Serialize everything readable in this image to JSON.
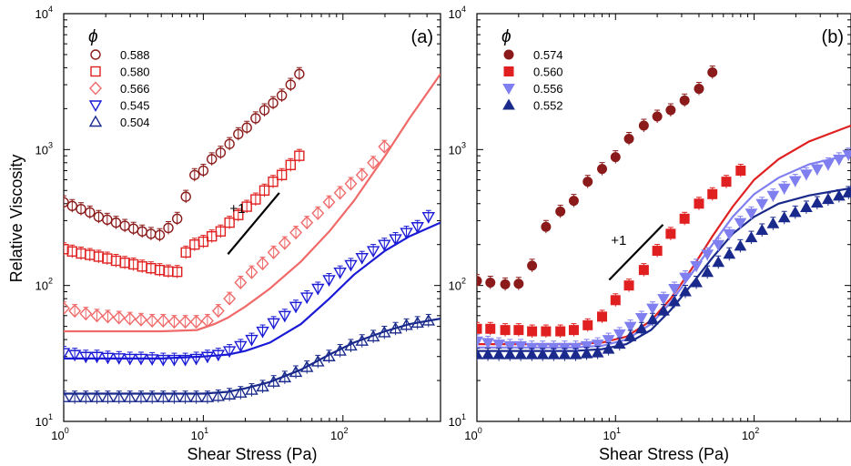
{
  "y_axis_label": "Relative Viscosity",
  "colors": {
    "darkred": "#8b1a1a",
    "red": "#e02020",
    "salmon": "#f06a6a",
    "blue": "#1a1ad6",
    "navy": "#1a2a8c",
    "lavender": "#7f7ff0"
  },
  "chart_data": [
    {
      "type": "scatter",
      "panel_label": "(a)",
      "xlabel": "Shear Stress (Pa)",
      "xscale": "log",
      "yscale": "log",
      "xlim": [
        1,
        500
      ],
      "ylim": [
        10,
        10000
      ],
      "x_ticks": [
        "10",
        "10",
        "10"
      ],
      "x_tick_exp": [
        "0",
        "1",
        "2"
      ],
      "y_ticks": [
        "10",
        "10",
        "10",
        "10"
      ],
      "y_tick_exp": [
        "1",
        "2",
        "3",
        "4"
      ],
      "legend_symbol": "ϕ",
      "legend_position": "top-left",
      "slope_label": "+1",
      "slope_line": {
        "x": [
          15,
          35
        ],
        "y": [
          170,
          480
        ]
      },
      "series": [
        {
          "name": "0.588",
          "marker": "circle",
          "color": "#8b1a1a",
          "x": [
            1.0,
            1.15,
            1.33,
            1.54,
            1.78,
            2.05,
            2.37,
            2.74,
            3.16,
            3.65,
            4.22,
            4.87,
            5.62,
            6.5,
            7.5,
            8.66,
            10,
            11.5,
            13.3,
            15.4,
            17.8,
            20.5,
            23.7,
            27.4,
            31.6,
            36.5,
            42.2,
            48.7
          ],
          "y": [
            410,
            385,
            365,
            345,
            320,
            305,
            290,
            275,
            262,
            250,
            240,
            235,
            265,
            310,
            450,
            650,
            700,
            850,
            950,
            1100,
            1300,
            1450,
            1700,
            1950,
            2200,
            2500,
            3000,
            3600
          ]
        },
        {
          "name": "0.580",
          "marker": "square",
          "color": "#e02020",
          "x": [
            1.0,
            1.15,
            1.33,
            1.54,
            1.78,
            2.05,
            2.37,
            2.74,
            3.16,
            3.65,
            4.22,
            4.87,
            5.62,
            6.5,
            7.5,
            8.66,
            10,
            11.5,
            13.3,
            15.4,
            17.8,
            20.5,
            23.7,
            27.4,
            31.6,
            36.5,
            42.2,
            48.7
          ],
          "y": [
            185,
            178,
            172,
            168,
            163,
            158,
            152,
            147,
            143,
            138,
            134,
            130,
            127,
            126,
            175,
            200,
            210,
            230,
            250,
            290,
            330,
            380,
            430,
            500,
            580,
            650,
            770,
            900
          ]
        },
        {
          "name": "0.566",
          "marker": "diamond",
          "color": "#f06a6a",
          "x": [
            1.0,
            1.2,
            1.44,
            1.73,
            2.07,
            2.49,
            2.98,
            3.58,
            4.3,
            5.16,
            6.19,
            7.43,
            8.9,
            10.7,
            12.8,
            15.4,
            18.5,
            22.2,
            26.6,
            31.9,
            38.3,
            46,
            55.2,
            66.2,
            79.5,
            95.4,
            114,
            137,
            165,
            198
          ],
          "y": [
            68,
            65,
            62,
            60,
            59,
            58,
            57,
            56,
            55,
            55,
            54,
            54,
            54,
            55,
            65,
            80,
            105,
            125,
            145,
            175,
            205,
            245,
            290,
            340,
            410,
            480,
            560,
            650,
            800,
            1050
          ]
        },
        {
          "name": "0.545",
          "marker": "tri-down",
          "color": "#1a1ad6",
          "x": [
            1.0,
            1.2,
            1.44,
            1.73,
            2.07,
            2.49,
            2.98,
            3.58,
            4.3,
            5.16,
            6.19,
            7.43,
            8.9,
            10.7,
            12.8,
            15.4,
            18.5,
            22.2,
            26.6,
            31.9,
            38.3,
            46,
            55.2,
            66.2,
            79.5,
            95.4,
            114,
            137,
            165,
            198,
            238,
            285,
            342,
            410
          ],
          "y": [
            32,
            31,
            30,
            30,
            29.5,
            29.3,
            29,
            29,
            28.8,
            28.5,
            28.5,
            28.5,
            29,
            30,
            31,
            33,
            36,
            40,
            46,
            53,
            60,
            70,
            82,
            95,
            110,
            125,
            142,
            160,
            180,
            200,
            220,
            245,
            270,
            320
          ]
        },
        {
          "name": "0.504",
          "marker": "tri-up",
          "color": "#1a2a8c",
          "x": [
            1.0,
            1.2,
            1.44,
            1.73,
            2.07,
            2.49,
            2.98,
            3.58,
            4.3,
            5.16,
            6.19,
            7.43,
            8.9,
            10.7,
            12.8,
            15.4,
            18.5,
            22.2,
            26.6,
            31.9,
            38.3,
            46,
            55.2,
            66.2,
            79.5,
            95.4,
            114,
            137,
            165,
            198,
            238,
            285,
            342,
            410
          ],
          "y": [
            15,
            15,
            15,
            15,
            15,
            15,
            15,
            15,
            15,
            15,
            15,
            15,
            15,
            15,
            15.3,
            15.7,
            16.2,
            17,
            18,
            19.5,
            21,
            23,
            25,
            27.5,
            30,
            33,
            36,
            39,
            42,
            45,
            48,
            51,
            53,
            55
          ]
        }
      ],
      "fits": [
        {
          "color": "#f06a6a",
          "x": [
            1,
            5,
            9,
            12,
            15,
            20,
            30,
            50,
            80,
            120,
            200,
            300,
            500
          ],
          "y": [
            46,
            46,
            47,
            52,
            58,
            70,
            95,
            150,
            250,
            420,
            900,
            1700,
            3600
          ]
        },
        {
          "color": "#1a1ad6",
          "x": [
            1,
            5,
            10,
            15,
            20,
            30,
            50,
            80,
            120,
            200,
            300,
            500
          ],
          "y": [
            29,
            29,
            30,
            31,
            33,
            38,
            52,
            80,
            120,
            180,
            230,
            290
          ]
        },
        {
          "color": "#1a2a8c",
          "x": [
            1,
            5,
            10,
            15,
            20,
            30,
            50,
            80,
            120,
            200,
            300,
            500
          ],
          "y": [
            16,
            16,
            16,
            16.5,
            17.5,
            19.5,
            24,
            31,
            38,
            46,
            52,
            57
          ]
        }
      ]
    },
    {
      "type": "scatter",
      "panel_label": "(b)",
      "xlabel": "Shear Stress (Pa)",
      "xscale": "log",
      "yscale": "log",
      "xlim": [
        1,
        500
      ],
      "ylim": [
        10,
        10000
      ],
      "x_ticks": [
        "10",
        "10",
        "10"
      ],
      "x_tick_exp": [
        "0",
        "1",
        "2"
      ],
      "y_ticks": [
        "10",
        "10",
        "10",
        "10"
      ],
      "y_tick_exp": [
        "1",
        "2",
        "3",
        "4"
      ],
      "legend_symbol": "ϕ",
      "legend_position": "top-left",
      "slope_label": "+1",
      "slope_line": {
        "x": [
          9,
          22
        ],
        "y": [
          110,
          280
        ]
      },
      "series": [
        {
          "name": "0.574",
          "marker": "circle-filled",
          "color": "#8b1a1a",
          "x": [
            1.0,
            1.25,
            1.6,
            2.0,
            2.5,
            3.15,
            4.0,
            5.0,
            6.3,
            8.0,
            10,
            12.5,
            16,
            20,
            25,
            31.5,
            40,
            50
          ],
          "y": [
            108,
            105,
            102,
            103,
            140,
            270,
            350,
            420,
            580,
            720,
            880,
            1200,
            1500,
            1750,
            1950,
            2300,
            2800,
            3700
          ]
        },
        {
          "name": "0.560",
          "marker": "square-filled",
          "color": "#e02020",
          "x": [
            1.0,
            1.25,
            1.6,
            2.0,
            2.5,
            3.15,
            4.0,
            5.0,
            6.3,
            8.0,
            10,
            12.5,
            16,
            20,
            25,
            31.5,
            40,
            50,
            63,
            80
          ],
          "y": [
            48,
            48,
            47,
            47,
            46,
            46,
            46,
            47,
            51,
            59,
            78,
            100,
            130,
            180,
            240,
            310,
            400,
            470,
            580,
            700
          ]
        },
        {
          "name": "0.556",
          "marker": "tri-down-filled",
          "color": "#7f7ff0",
          "x": [
            1.0,
            1.2,
            1.44,
            1.73,
            2.07,
            2.49,
            2.98,
            3.58,
            4.3,
            5.16,
            6.19,
            7.43,
            8.9,
            10.7,
            12.8,
            15.4,
            18.5,
            22.2,
            26.6,
            31.9,
            38.3,
            46,
            55.2,
            66.2,
            79.5,
            95.4,
            114,
            137,
            165,
            198,
            238,
            285,
            342,
            410,
            480
          ],
          "y": [
            39,
            38,
            37,
            36,
            36,
            35,
            35,
            35,
            35,
            35,
            36,
            37,
            40,
            44,
            50,
            58,
            68,
            80,
            95,
            115,
            140,
            170,
            200,
            240,
            290,
            340,
            400,
            460,
            520,
            590,
            660,
            720,
            780,
            850,
            920
          ]
        },
        {
          "name": "0.552",
          "marker": "tri-up-filled",
          "color": "#1a2a8c",
          "x": [
            1.0,
            1.2,
            1.44,
            1.73,
            2.07,
            2.49,
            2.98,
            3.58,
            4.3,
            5.16,
            6.19,
            7.43,
            8.9,
            10.7,
            12.8,
            15.4,
            18.5,
            22.2,
            26.6,
            31.9,
            38.3,
            46,
            55.2,
            66.2,
            79.5,
            95.4,
            114,
            137,
            165,
            198,
            238,
            285,
            342,
            410,
            480
          ],
          "y": [
            31,
            31,
            31,
            31,
            31,
            31,
            31,
            31,
            31,
            31,
            31.5,
            32,
            34,
            37,
            42,
            48,
            56,
            65,
            76,
            90,
            105,
            125,
            148,
            170,
            195,
            225,
            255,
            285,
            315,
            345,
            375,
            405,
            430,
            455,
            480
          ]
        }
      ],
      "fits": [
        {
          "color": "#e02020",
          "x": [
            1,
            5,
            8,
            12,
            18,
            25,
            35,
            50,
            70,
            100,
            150,
            250,
            500
          ],
          "y": [
            37,
            37,
            38,
            42,
            55,
            80,
            130,
            230,
            380,
            600,
            850,
            1150,
            1500
          ]
        },
        {
          "color": "#7f7ff0",
          "x": [
            1,
            5,
            8,
            12,
            18,
            25,
            35,
            50,
            70,
            100,
            150,
            250,
            500
          ],
          "y": [
            35,
            35,
            36,
            40,
            52,
            75,
            120,
            200,
            320,
            470,
            620,
            780,
            920
          ]
        },
        {
          "color": "#1a2a8c",
          "x": [
            1,
            5,
            8,
            12,
            18,
            25,
            35,
            50,
            70,
            100,
            150,
            250,
            500
          ],
          "y": [
            33,
            33,
            34,
            37,
            47,
            66,
            100,
            160,
            240,
            320,
            400,
            460,
            520
          ]
        }
      ]
    }
  ]
}
